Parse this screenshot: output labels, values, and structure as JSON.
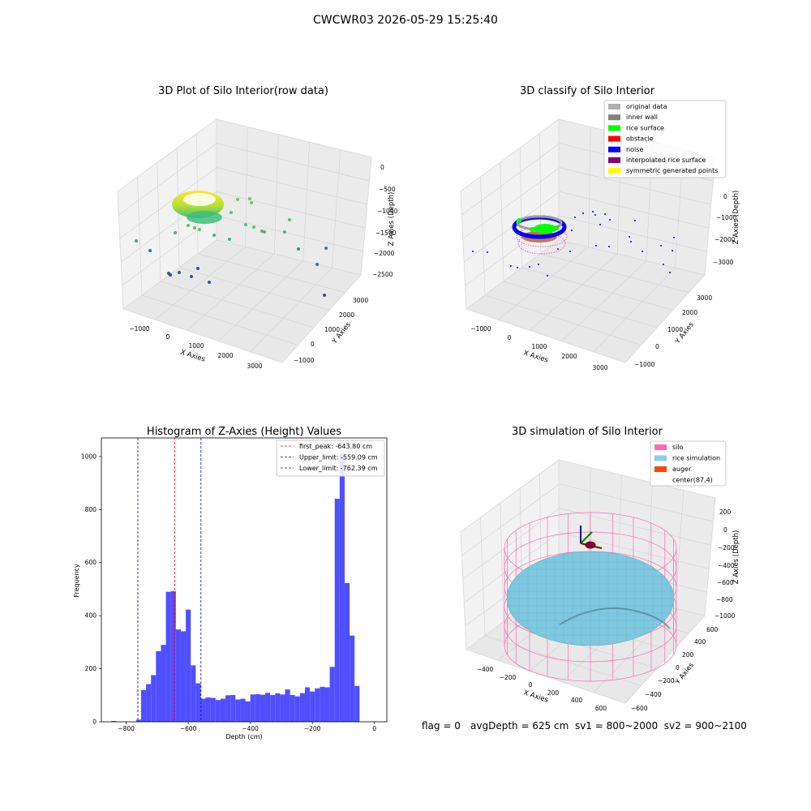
{
  "suptitle": "CWCWR03 2026-05-29 15:25:40",
  "colors": {
    "hist_bar": "#4f4fff",
    "first_peak": "#ff0000",
    "limits": "#0000cc"
  },
  "plot1": {
    "title": "3D Plot of Silo Interior(row data)",
    "xlabel": "X Axies",
    "ylabel": "Y Axies",
    "zlabel": "Z Axies (Depth)",
    "xticks": [
      "−1000",
      "0",
      "1000",
      "2000",
      "3000"
    ],
    "yticks": [
      "−1000",
      "0",
      "1000",
      "2000",
      "3000"
    ],
    "zticks": [
      "0",
      "−500",
      "−1000",
      "−1500",
      "−2000",
      "−2500"
    ]
  },
  "plot2": {
    "title": "3D classify of Silo Interior",
    "xlabel": "X Axies",
    "ylabel": "Y Axies",
    "zlabel": "Z Axies (Depth)",
    "xticks": [
      "−1000",
      "0",
      "1000",
      "2000",
      "3000"
    ],
    "yticks": [
      "−1000",
      "0",
      "1000",
      "2000",
      "3000"
    ],
    "zticks": [
      "0",
      "−1000",
      "−2000",
      "−3000"
    ],
    "legend": [
      {
        "label": "original data",
        "color": "#b0b0b0"
      },
      {
        "label": "inner wall",
        "color": "#808080"
      },
      {
        "label": "rice surface",
        "color": "#00ff00"
      },
      {
        "label": "obstacle",
        "color": "#ff0000"
      },
      {
        "label": "noise",
        "color": "#0000ff"
      },
      {
        "label": "interpolated rice surface",
        "color": "#800080"
      },
      {
        "label": "symmetric generated points",
        "color": "#ffff00"
      }
    ]
  },
  "plot4": {
    "title": "3D simulation of Silo Interior",
    "xlabel": "X Axies",
    "ylabel": "Y Axies",
    "zlabel": "Z Axies (Depth)",
    "xticks": [
      "−400",
      "−200",
      "0",
      "200",
      "400",
      "600"
    ],
    "yticks": [
      "−600",
      "−400",
      "−200",
      "0",
      "200",
      "400",
      "600"
    ],
    "zticks": [
      "200",
      "0",
      "−200",
      "−400",
      "−600",
      "−800",
      "−1000"
    ],
    "legend": [
      {
        "label": "silo",
        "color": "#ff69b4"
      },
      {
        "label": "rice simulation",
        "color": "#87ceeb"
      },
      {
        "label": "auger",
        "color": "#ff4500"
      },
      {
        "label": "center(87,4)",
        "color": ""
      }
    ]
  },
  "footer": {
    "flag": "flag = 0",
    "stats": "avgDepth = 625 cm  sv1 = 800~2000  sv2 = 900~2100"
  },
  "chart_data": {
    "type": "bar",
    "title": "Histogram of Z-Axies (Height) Values",
    "xlabel": "Depth (cm)",
    "ylabel": "Frequency",
    "xlim": [
      -880,
      40
    ],
    "ylim": [
      0,
      1070
    ],
    "xticks": [
      -800,
      -600,
      -400,
      -200,
      0
    ],
    "yticks": [
      0,
      200,
      400,
      600,
      800,
      1000
    ],
    "bin_width": 16,
    "bins_start": [
      -848,
      -832,
      -816,
      -800,
      -784,
      -768,
      -752,
      -736,
      -720,
      -704,
      -688,
      -672,
      -656,
      -640,
      -624,
      -608,
      -592,
      -576,
      -560,
      -544,
      -528,
      -512,
      -496,
      -480,
      -464,
      -448,
      -432,
      -416,
      -400,
      -384,
      -368,
      -352,
      -336,
      -320,
      -304,
      -288,
      -272,
      -256,
      -240,
      -224,
      -208,
      -192,
      -176,
      -160,
      -144,
      -128,
      -112,
      -96,
      -80,
      -64,
      -48,
      -32,
      -16
    ],
    "values": [
      3,
      0,
      0,
      0,
      0,
      8,
      120,
      142,
      176,
      266,
      290,
      490,
      492,
      348,
      341,
      423,
      213,
      145,
      87,
      92,
      90,
      82,
      87,
      100,
      101,
      84,
      87,
      77,
      103,
      104,
      102,
      109,
      101,
      107,
      103,
      122,
      101,
      96,
      108,
      130,
      114,
      126,
      132,
      130,
      207,
      841,
      1010,
      523,
      325,
      135,
      0,
      0,
      0
    ],
    "vlines": [
      {
        "x": -643.8,
        "label": "first_peak: -643.80 cm",
        "color": "#ff0000"
      },
      {
        "x": -559.09,
        "label": "Upper_limit: -559.09 cm",
        "color": "#0000cc"
      },
      {
        "x": -762.39,
        "label": "Lower_limit: -762.39 cm",
        "color": "#0000cc"
      }
    ],
    "legend_position": "top-right"
  }
}
